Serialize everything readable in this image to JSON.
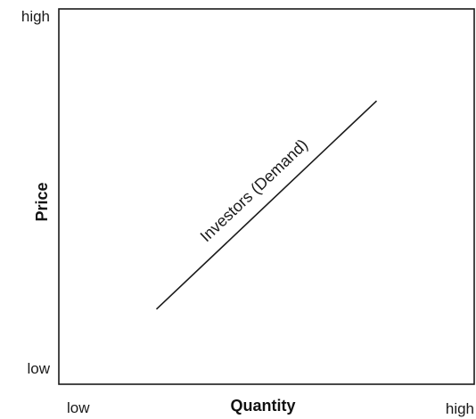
{
  "chart_data": {
    "type": "line",
    "title": "",
    "xlabel": "Quantity",
    "ylabel": "Price",
    "xlim": [
      0,
      1
    ],
    "ylim": [
      0,
      1
    ],
    "x_tick_labels": {
      "min": "low",
      "max": "high"
    },
    "y_tick_labels": {
      "min": "low",
      "max": "high"
    },
    "grid": false,
    "legend": "none",
    "series": [
      {
        "name": "Investors (Demand)",
        "x": [
          0.235,
          0.765
        ],
        "y": [
          0.2,
          0.755
        ],
        "color": "#1a1a1a"
      }
    ]
  }
}
